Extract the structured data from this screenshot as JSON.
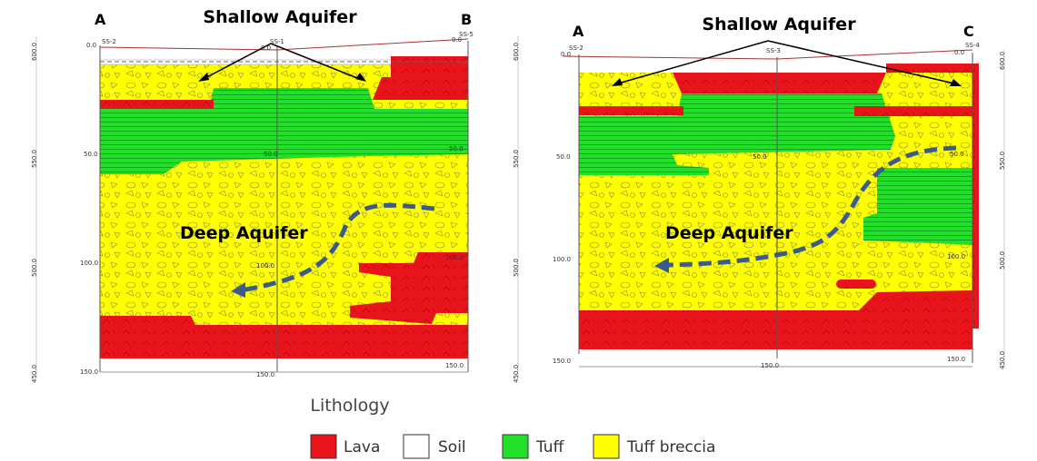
{
  "panels": [
    {
      "left_label": "A",
      "right_label": "B",
      "shallow_label": "Shallow Aquifer",
      "deep_label": "Deep Aquifer",
      "boreholes": [
        "SS-2",
        "SS-1",
        "SS-5"
      ],
      "depth_labels": [
        "0.0",
        "50.0",
        "100.0",
        "150.0"
      ],
      "elevation_labels": [
        "600.0",
        "550.0",
        "500.0",
        "450.0"
      ]
    },
    {
      "left_label": "A",
      "right_label": "C",
      "shallow_label": "Shallow Aquifer",
      "deep_label": "Deep Aquifer",
      "boreholes": [
        "SS-2",
        "SS-3",
        "SS-4"
      ],
      "depth_labels": [
        "0.0",
        "50.0",
        "100.0",
        "150.0"
      ],
      "elevation_labels": [
        "600.0",
        "550.0",
        "500.0",
        "450.0"
      ]
    }
  ],
  "legend": {
    "title": "Lithology",
    "items": [
      {
        "label": "Lava",
        "color": "#e8141c"
      },
      {
        "label": "Soil",
        "color": "#ffffff"
      },
      {
        "label": "Tuff",
        "color": "#22e02a"
      },
      {
        "label": "Tuff breccia",
        "color": "#ffff00"
      }
    ]
  }
}
